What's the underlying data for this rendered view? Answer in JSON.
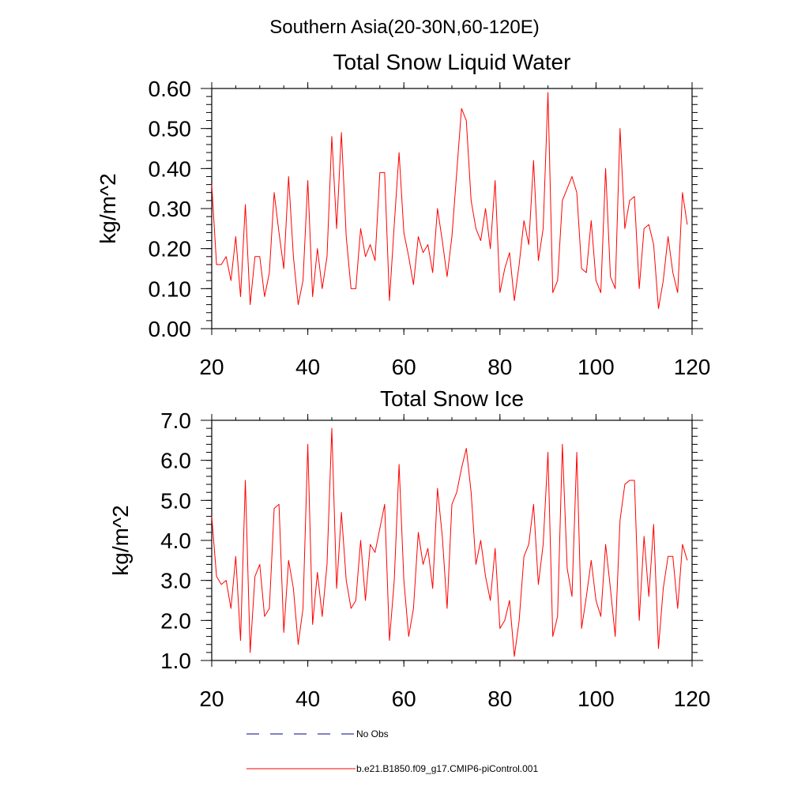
{
  "suptitle": "Southern Asia(20-30N,60-120E)",
  "colors": {
    "model": "#ff0000",
    "obs": "#00008b",
    "axes": "#000000"
  },
  "legend": [
    {
      "label": "No Obs",
      "style": "dashed",
      "color": "#00008b"
    },
    {
      "label": "b.e21.B1850.f09_g17.CMIP6-piControl.001",
      "style": "solid",
      "color": "#ff0000"
    }
  ],
  "chart_data": [
    {
      "type": "line",
      "title": "Total Snow Liquid Water",
      "xlabel": "",
      "ylabel": "kg/m^2",
      "xlim": [
        20,
        120
      ],
      "ylim": [
        0.0,
        0.6
      ],
      "xticks": [
        20,
        40,
        60,
        80,
        100,
        120
      ],
      "xtick_labels": [
        "20",
        "40",
        "60",
        "80",
        "100",
        "120"
      ],
      "yticks": [
        0.0,
        0.1,
        0.2,
        0.3,
        0.4,
        0.5,
        0.6
      ],
      "ytick_labels": [
        "0.00",
        "0.10",
        "0.20",
        "0.30",
        "0.40",
        "0.50",
        "0.60"
      ],
      "x_start": 20,
      "x_step": 1,
      "series": [
        {
          "name": "b.e21.B1850.f09_g17.CMIP6-piControl.001",
          "values": [
            0.36,
            0.16,
            0.16,
            0.18,
            0.12,
            0.23,
            0.08,
            0.31,
            0.06,
            0.18,
            0.18,
            0.08,
            0.14,
            0.34,
            0.24,
            0.15,
            0.38,
            0.18,
            0.06,
            0.12,
            0.37,
            0.08,
            0.2,
            0.1,
            0.18,
            0.48,
            0.25,
            0.49,
            0.23,
            0.1,
            0.1,
            0.25,
            0.18,
            0.21,
            0.17,
            0.39,
            0.39,
            0.07,
            0.26,
            0.44,
            0.24,
            0.18,
            0.11,
            0.23,
            0.19,
            0.21,
            0.14,
            0.3,
            0.22,
            0.13,
            0.23,
            0.39,
            0.55,
            0.52,
            0.32,
            0.25,
            0.22,
            0.3,
            0.2,
            0.37,
            0.09,
            0.15,
            0.19,
            0.07,
            0.16,
            0.27,
            0.21,
            0.42,
            0.17,
            0.25,
            0.59,
            0.09,
            0.12,
            0.32,
            0.35,
            0.38,
            0.34,
            0.15,
            0.14,
            0.27,
            0.12,
            0.09,
            0.4,
            0.13,
            0.1,
            0.5,
            0.25,
            0.32,
            0.33,
            0.1,
            0.25,
            0.26,
            0.21,
            0.05,
            0.12,
            0.23,
            0.14,
            0.09,
            0.34,
            0.26
          ]
        }
      ]
    },
    {
      "type": "line",
      "title": "Total Snow Ice",
      "xlabel": "",
      "ylabel": "kg/m^2",
      "xlim": [
        20,
        120
      ],
      "ylim": [
        1.0,
        7.0
      ],
      "xticks": [
        20,
        40,
        60,
        80,
        100,
        120
      ],
      "xtick_labels": [
        "20",
        "40",
        "60",
        "80",
        "100",
        "120"
      ],
      "yticks": [
        1.0,
        2.0,
        3.0,
        4.0,
        5.0,
        6.0,
        7.0
      ],
      "ytick_labels": [
        "1.0",
        "2.0",
        "3.0",
        "4.0",
        "5.0",
        "6.0",
        "7.0"
      ],
      "x_start": 20,
      "x_step": 1,
      "series": [
        {
          "name": "b.e21.B1850.f09_g17.CMIP6-piControl.001",
          "values": [
            4.6,
            3.1,
            2.9,
            3.0,
            2.3,
            3.6,
            1.5,
            5.5,
            1.2,
            3.1,
            3.4,
            2.1,
            2.3,
            4.8,
            4.9,
            1.7,
            3.5,
            2.8,
            1.4,
            2.3,
            6.4,
            1.9,
            3.2,
            2.1,
            3.4,
            6.8,
            2.8,
            4.7,
            3.0,
            2.3,
            2.5,
            4.0,
            2.5,
            3.9,
            3.7,
            4.3,
            4.9,
            1.5,
            3.0,
            5.9,
            3.0,
            1.6,
            2.3,
            4.2,
            3.4,
            3.8,
            2.8,
            5.3,
            4.1,
            2.3,
            4.9,
            5.2,
            5.8,
            6.3,
            5.2,
            3.4,
            4.0,
            3.1,
            2.5,
            3.8,
            1.8,
            2.0,
            2.5,
            1.1,
            2.0,
            3.6,
            3.9,
            4.9,
            2.9,
            3.9,
            6.2,
            1.6,
            2.1,
            6.4,
            3.3,
            2.6,
            6.2,
            1.8,
            2.6,
            3.5,
            2.5,
            2.1,
            3.9,
            2.8,
            1.6,
            4.5,
            5.4,
            5.5,
            5.5,
            2.0,
            4.1,
            2.6,
            4.4,
            1.3,
            2.8,
            3.6,
            3.6,
            2.3,
            3.9,
            3.5
          ]
        }
      ]
    }
  ]
}
